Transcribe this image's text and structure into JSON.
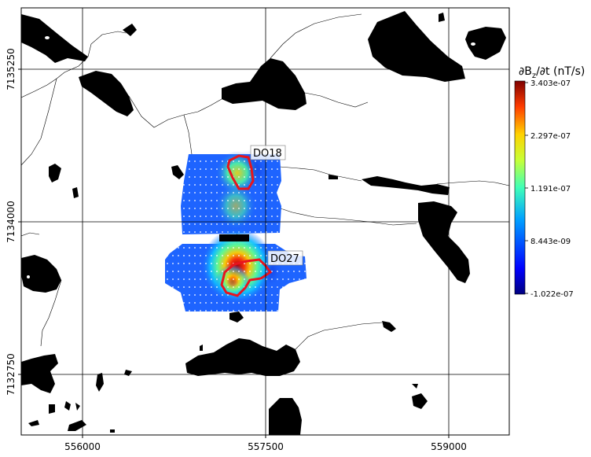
{
  "map": {
    "x_ticks": [
      "556000",
      "557500",
      "559000"
    ],
    "y_ticks": [
      "7135250",
      "7134000",
      "7132750"
    ],
    "labels": [
      {
        "id": "do18",
        "text": "DO18"
      },
      {
        "id": "do27",
        "text": "DO27"
      }
    ]
  },
  "colorbar": {
    "title": "∂B_z/∂t (nT/s)",
    "title_main": "∂B",
    "title_sub": "z",
    "title_rest": "/∂t (nT/s)",
    "ticks": [
      "3.403e-07",
      "2.297e-07",
      "1.191e-07",
      "8.443e-09",
      "-1.022e-07"
    ],
    "colormap": "jet"
  },
  "colors": {
    "lake": "#000000",
    "anomaly_outline": "#e8141e",
    "survey_base": "#1e64ff"
  }
}
